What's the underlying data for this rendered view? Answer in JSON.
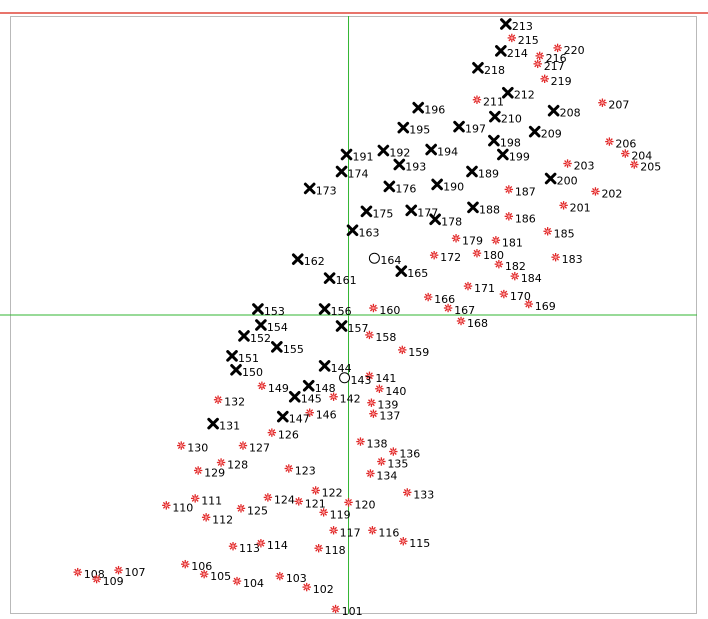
{
  "colors": {
    "background": "#ffffff",
    "frame": "#b9b9b9",
    "top_rule": "#e0473a",
    "axis_lines": "#31b531",
    "red_marker": "#e02828",
    "red_marker_center": "#ff9a9a",
    "cross_marker": "#000000",
    "hollow_marker": "#000000",
    "label": "#000000"
  },
  "chart_data": {
    "type": "scatter",
    "xlim": [
      -340,
      350
    ],
    "ylim": [
      -300,
      300
    ],
    "axes_origin": [
      0,
      0
    ],
    "grid": false,
    "legend": "none",
    "points": [
      {
        "label": "101",
        "x": -13,
        "y": -295,
        "marker": "red-star"
      },
      {
        "label": "102",
        "x": -42,
        "y": -273,
        "marker": "red-star"
      },
      {
        "label": "103",
        "x": -69,
        "y": -262,
        "marker": "red-star"
      },
      {
        "label": "104",
        "x": -112,
        "y": -267,
        "marker": "red-star"
      },
      {
        "label": "105",
        "x": -145,
        "y": -260,
        "marker": "red-star"
      },
      {
        "label": "106",
        "x": -164,
        "y": -250,
        "marker": "red-star"
      },
      {
        "label": "107",
        "x": -231,
        "y": -256,
        "marker": "red-star"
      },
      {
        "label": "108",
        "x": -272,
        "y": -258,
        "marker": "red-star"
      },
      {
        "label": "109",
        "x": -253,
        "y": -265,
        "marker": "red-star"
      },
      {
        "label": "110",
        "x": -183,
        "y": -191,
        "marker": "red-star"
      },
      {
        "label": "111",
        "x": -154,
        "y": -184,
        "marker": "red-star"
      },
      {
        "label": "112",
        "x": -143,
        "y": -203,
        "marker": "red-star"
      },
      {
        "label": "113",
        "x": -116,
        "y": -232,
        "marker": "red-star"
      },
      {
        "label": "114",
        "x": -88,
        "y": -229,
        "marker": "red-star"
      },
      {
        "label": "115",
        "x": 55,
        "y": -227,
        "marker": "red-star"
      },
      {
        "label": "116",
        "x": 24,
        "y": -216,
        "marker": "red-star"
      },
      {
        "label": "117",
        "x": -15,
        "y": -216,
        "marker": "red-star"
      },
      {
        "label": "118",
        "x": -30,
        "y": -234,
        "marker": "red-star"
      },
      {
        "label": "119",
        "x": -25,
        "y": -198,
        "marker": "red-star"
      },
      {
        "label": "120",
        "x": 0,
        "y": -188,
        "marker": "red-star"
      },
      {
        "label": "121",
        "x": -50,
        "y": -187,
        "marker": "red-star"
      },
      {
        "label": "122",
        "x": -33,
        "y": -176,
        "marker": "red-star"
      },
      {
        "label": "123",
        "x": -60,
        "y": -154,
        "marker": "red-star"
      },
      {
        "label": "124",
        "x": -81,
        "y": -183,
        "marker": "red-star"
      },
      {
        "label": "125",
        "x": -108,
        "y": -194,
        "marker": "red-star"
      },
      {
        "label": "126",
        "x": -77,
        "y": -118,
        "marker": "red-star"
      },
      {
        "label": "127",
        "x": -106,
        "y": -131,
        "marker": "red-star"
      },
      {
        "label": "128",
        "x": -128,
        "y": -148,
        "marker": "red-star"
      },
      {
        "label": "129",
        "x": -151,
        "y": -156,
        "marker": "red-star"
      },
      {
        "label": "130",
        "x": -168,
        "y": -131,
        "marker": "red-star"
      },
      {
        "label": "131",
        "x": -136,
        "y": -109,
        "marker": "black-x"
      },
      {
        "label": "132",
        "x": -131,
        "y": -85,
        "marker": "red-star"
      },
      {
        "label": "133",
        "x": 59,
        "y": -178,
        "marker": "red-star"
      },
      {
        "label": "134",
        "x": 22,
        "y": -159,
        "marker": "red-star"
      },
      {
        "label": "135",
        "x": 33,
        "y": -147,
        "marker": "red-star"
      },
      {
        "label": "136",
        "x": 45,
        "y": -137,
        "marker": "red-star"
      },
      {
        "label": "137",
        "x": 25,
        "y": -99,
        "marker": "red-star"
      },
      {
        "label": "138",
        "x": 12,
        "y": -127,
        "marker": "red-star"
      },
      {
        "label": "139",
        "x": 23,
        "y": -88,
        "marker": "red-star"
      },
      {
        "label": "140",
        "x": 31,
        "y": -74,
        "marker": "red-star"
      },
      {
        "label": "141",
        "x": 21,
        "y": -61,
        "marker": "red-star"
      },
      {
        "label": "142",
        "x": -15,
        "y": -82,
        "marker": "red-star"
      },
      {
        "label": "143",
        "x": -4,
        "y": -63,
        "marker": "hollow-circle"
      },
      {
        "label": "144",
        "x": -24,
        "y": -51,
        "marker": "black-x"
      },
      {
        "label": "145",
        "x": -54,
        "y": -82,
        "marker": "black-x"
      },
      {
        "label": "146",
        "x": -39,
        "y": -98,
        "marker": "red-star"
      },
      {
        "label": "147",
        "x": -66,
        "y": -102,
        "marker": "black-x"
      },
      {
        "label": "148",
        "x": -40,
        "y": -71,
        "marker": "black-x"
      },
      {
        "label": "149",
        "x": -87,
        "y": -71,
        "marker": "red-star"
      },
      {
        "label": "150",
        "x": -113,
        "y": -55,
        "marker": "black-x"
      },
      {
        "label": "151",
        "x": -117,
        "y": -41,
        "marker": "black-x"
      },
      {
        "label": "152",
        "x": -105,
        "y": -21,
        "marker": "black-x"
      },
      {
        "label": "153",
        "x": -91,
        "y": 6,
        "marker": "black-x"
      },
      {
        "label": "154",
        "x": -88,
        "y": -10,
        "marker": "black-x"
      },
      {
        "label": "155",
        "x": -72,
        "y": -32,
        "marker": "black-x"
      },
      {
        "label": "156",
        "x": -24,
        "y": 6,
        "marker": "black-x"
      },
      {
        "label": "157",
        "x": -7,
        "y": -11,
        "marker": "black-x"
      },
      {
        "label": "158",
        "x": 21,
        "y": -20,
        "marker": "red-star"
      },
      {
        "label": "159",
        "x": 54,
        "y": -35,
        "marker": "red-star"
      },
      {
        "label": "160",
        "x": 25,
        "y": 7,
        "marker": "red-star"
      },
      {
        "label": "161",
        "x": -19,
        "y": 37,
        "marker": "black-x"
      },
      {
        "label": "162",
        "x": -51,
        "y": 56,
        "marker": "black-x"
      },
      {
        "label": "163",
        "x": 4,
        "y": 85,
        "marker": "black-x"
      },
      {
        "label": "164",
        "x": 26,
        "y": 57,
        "marker": "hollow-circle"
      },
      {
        "label": "165",
        "x": 53,
        "y": 44,
        "marker": "black-x"
      },
      {
        "label": "166",
        "x": 80,
        "y": 18,
        "marker": "red-star"
      },
      {
        "label": "167",
        "x": 100,
        "y": 7,
        "marker": "red-star"
      },
      {
        "label": "168",
        "x": 113,
        "y": -6,
        "marker": "red-star"
      },
      {
        "label": "169",
        "x": 181,
        "y": 11,
        "marker": "red-star"
      },
      {
        "label": "170",
        "x": 156,
        "y": 21,
        "marker": "red-star"
      },
      {
        "label": "171",
        "x": 120,
        "y": 29,
        "marker": "red-star"
      },
      {
        "label": "172",
        "x": 86,
        "y": 60,
        "marker": "red-star"
      },
      {
        "label": "173",
        "x": -39,
        "y": 127,
        "marker": "black-x"
      },
      {
        "label": "174",
        "x": -7,
        "y": 144,
        "marker": "black-x"
      },
      {
        "label": "175",
        "x": 18,
        "y": 104,
        "marker": "black-x"
      },
      {
        "label": "176",
        "x": 41,
        "y": 129,
        "marker": "black-x"
      },
      {
        "label": "177",
        "x": 63,
        "y": 105,
        "marker": "black-x"
      },
      {
        "label": "178",
        "x": 87,
        "y": 96,
        "marker": "black-x"
      },
      {
        "label": "179",
        "x": 108,
        "y": 77,
        "marker": "red-star"
      },
      {
        "label": "180",
        "x": 129,
        "y": 62,
        "marker": "red-star"
      },
      {
        "label": "181",
        "x": 148,
        "y": 75,
        "marker": "red-star"
      },
      {
        "label": "182",
        "x": 151,
        "y": 51,
        "marker": "red-star"
      },
      {
        "label": "183",
        "x": 208,
        "y": 58,
        "marker": "red-star"
      },
      {
        "label": "184",
        "x": 167,
        "y": 39,
        "marker": "red-star"
      },
      {
        "label": "185",
        "x": 200,
        "y": 84,
        "marker": "red-star"
      },
      {
        "label": "186",
        "x": 161,
        "y": 99,
        "marker": "red-star"
      },
      {
        "label": "187",
        "x": 161,
        "y": 126,
        "marker": "red-star"
      },
      {
        "label": "188",
        "x": 125,
        "y": 108,
        "marker": "black-x"
      },
      {
        "label": "189",
        "x": 124,
        "y": 144,
        "marker": "black-x"
      },
      {
        "label": "190",
        "x": 89,
        "y": 131,
        "marker": "black-x"
      },
      {
        "label": "191",
        "x": -2,
        "y": 161,
        "marker": "black-x"
      },
      {
        "label": "192",
        "x": 35,
        "y": 165,
        "marker": "black-x"
      },
      {
        "label": "193",
        "x": 51,
        "y": 151,
        "marker": "black-x"
      },
      {
        "label": "194",
        "x": 83,
        "y": 166,
        "marker": "black-x"
      },
      {
        "label": "195",
        "x": 55,
        "y": 188,
        "marker": "black-x"
      },
      {
        "label": "196",
        "x": 70,
        "y": 208,
        "marker": "black-x"
      },
      {
        "label": "197",
        "x": 111,
        "y": 189,
        "marker": "black-x"
      },
      {
        "label": "198",
        "x": 146,
        "y": 175,
        "marker": "black-x"
      },
      {
        "label": "199",
        "x": 155,
        "y": 161,
        "marker": "black-x"
      },
      {
        "label": "200",
        "x": 203,
        "y": 137,
        "marker": "black-x"
      },
      {
        "label": "201",
        "x": 216,
        "y": 110,
        "marker": "red-star"
      },
      {
        "label": "202",
        "x": 248,
        "y": 124,
        "marker": "red-star"
      },
      {
        "label": "203",
        "x": 220,
        "y": 152,
        "marker": "red-star"
      },
      {
        "label": "204",
        "x": 278,
        "y": 162,
        "marker": "red-star"
      },
      {
        "label": "205",
        "x": 287,
        "y": 151,
        "marker": "red-star"
      },
      {
        "label": "206",
        "x": 262,
        "y": 174,
        "marker": "red-star"
      },
      {
        "label": "207",
        "x": 255,
        "y": 213,
        "marker": "red-star"
      },
      {
        "label": "208",
        "x": 206,
        "y": 205,
        "marker": "black-x"
      },
      {
        "label": "209",
        "x": 187,
        "y": 184,
        "marker": "black-x"
      },
      {
        "label": "210",
        "x": 147,
        "y": 199,
        "marker": "black-x"
      },
      {
        "label": "211",
        "x": 129,
        "y": 216,
        "marker": "red-star"
      },
      {
        "label": "212",
        "x": 160,
        "y": 223,
        "marker": "black-x"
      },
      {
        "label": "213",
        "x": 158,
        "y": 292,
        "marker": "black-x"
      },
      {
        "label": "214",
        "x": 153,
        "y": 265,
        "marker": "black-x"
      },
      {
        "label": "215",
        "x": 164,
        "y": 278,
        "marker": "red-star"
      },
      {
        "label": "216",
        "x": 192,
        "y": 260,
        "marker": "red-star"
      },
      {
        "label": "217",
        "x": 190,
        "y": 252,
        "marker": "red-star"
      },
      {
        "label": "218",
        "x": 130,
        "y": 248,
        "marker": "black-x"
      },
      {
        "label": "219",
        "x": 197,
        "y": 237,
        "marker": "red-star"
      },
      {
        "label": "220",
        "x": 210,
        "y": 268,
        "marker": "red-star"
      }
    ]
  }
}
